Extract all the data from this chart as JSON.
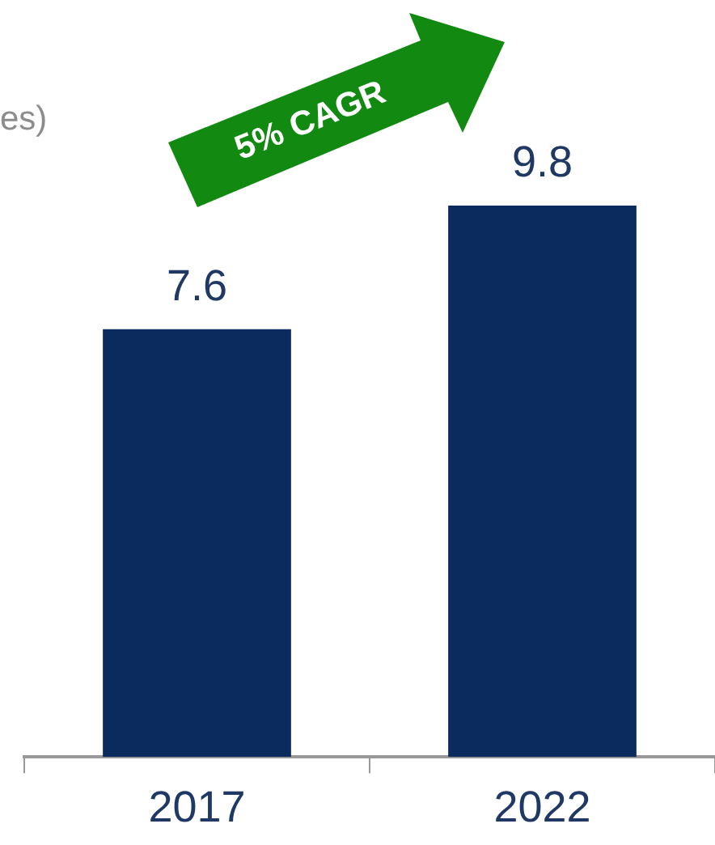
{
  "chart_data": {
    "type": "bar",
    "categories": [
      "2017",
      "2022"
    ],
    "values": [
      7.6,
      9.8
    ],
    "color": "#0b2b5e",
    "data_labels": true,
    "grid": false,
    "legend": false,
    "annotations": [
      "5% CAGR",
      "es)"
    ]
  }
}
